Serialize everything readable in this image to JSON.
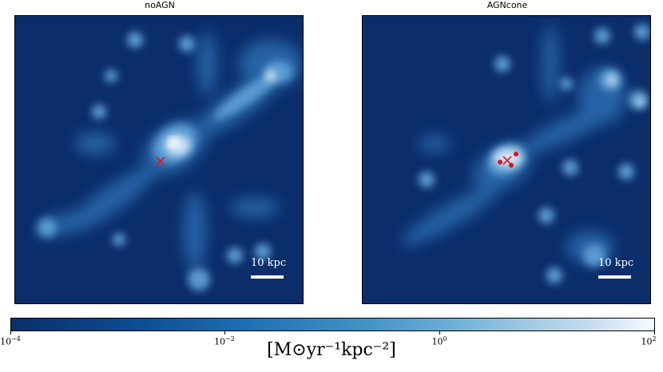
{
  "panels": [
    {
      "title": "noAGN",
      "scalebar_label": "10 kpc"
    },
    {
      "title": "AGNcone",
      "scalebar_label": "10 kpc"
    }
  ],
  "colorbar": {
    "ticks": [
      {
        "base": "10",
        "exp": "−4"
      },
      {
        "base": "10",
        "exp": "−2"
      },
      {
        "base": "10",
        "exp": "0"
      },
      {
        "base": "10",
        "exp": "2"
      }
    ],
    "label": "[M⊙yr⁻¹kpc⁻²]",
    "scale": "log",
    "range": [
      0.0001,
      100
    ],
    "colormap": "Blues_r"
  },
  "colors": {
    "background": "#0b2d6a",
    "marker": "#e0141e",
    "scalebar": "#ffffff"
  }
}
